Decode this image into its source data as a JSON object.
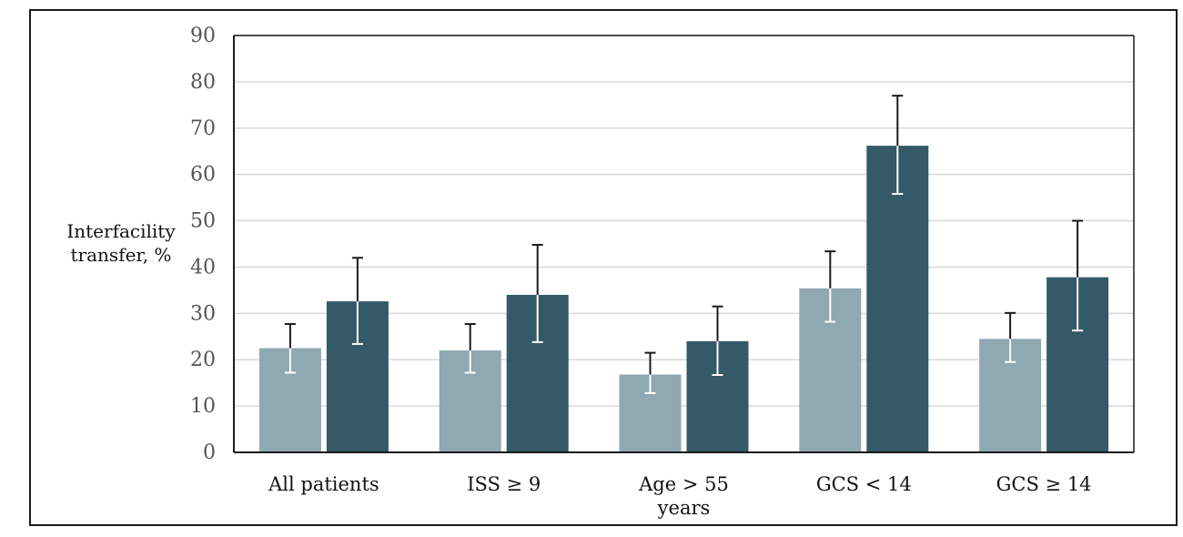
{
  "chart_data": {
    "type": "bar",
    "title": "",
    "ylabel": [
      "Interfacility",
      "transfer, %"
    ],
    "xlabel": "",
    "ylim": [
      0,
      90
    ],
    "yticks": [
      0,
      10,
      20,
      30,
      40,
      50,
      60,
      70,
      80,
      90
    ],
    "grid": true,
    "legend": "none",
    "categories": [
      [
        "All patients"
      ],
      [
        "ISS ≥ 9"
      ],
      [
        "Age > 55",
        "years"
      ],
      [
        "GCS < 14"
      ],
      [
        "GCS ≥ 14"
      ]
    ],
    "series": [
      {
        "color": "#8fa8b2",
        "values": [
          22.5,
          22,
          16.8,
          35.4,
          24.5
        ],
        "error_low": [
          17.2,
          17.2,
          12.8,
          28.2,
          19.5
        ],
        "error_high": [
          27.7,
          27.7,
          21.5,
          43.4,
          30.1
        ]
      },
      {
        "color": "#335a66",
        "values": [
          32.6,
          34,
          24,
          66.2,
          37.8
        ],
        "error_low": [
          23.4,
          23.8,
          16.7,
          55.8,
          26.3
        ],
        "error_high": [
          42,
          44.8,
          31.5,
          77,
          50
        ]
      }
    ],
    "colors": {
      "axis": "#1a1a1a",
      "grid": "#d9d9d9",
      "error_bar": "#1a1a1a",
      "error_cap_inner": "#ffffff"
    }
  }
}
